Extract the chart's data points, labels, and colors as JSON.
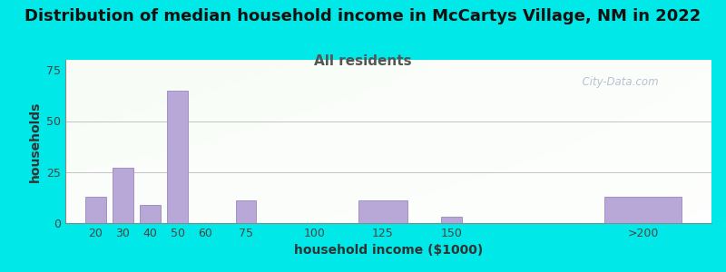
{
  "title": "Distribution of median household income in McCartys Village, NM in 2022",
  "subtitle": "All residents",
  "xlabel": "household income ($1000)",
  "ylabel": "households",
  "bar_labels": [
    "20",
    "30",
    "40",
    "50",
    "60",
    "75",
    "100",
    "125",
    "150",
    ">200"
  ],
  "bar_values": [
    13,
    27,
    9,
    65,
    0,
    11,
    0,
    11,
    3,
    13
  ],
  "bar_color": "#b8a8d8",
  "bar_edge_color": "#9a88c0",
  "ylim": [
    0,
    80
  ],
  "yticks": [
    0,
    25,
    50,
    75
  ],
  "bg_color": "#00e8e8",
  "title_fontsize": 13,
  "subtitle_fontsize": 11,
  "subtitle_color": "#555555",
  "axis_label_fontsize": 10,
  "tick_fontsize": 9,
  "watermark_text": "  City-Data.com",
  "watermark_color": "#aab8c8",
  "x_positions": [
    20,
    30,
    40,
    50,
    60,
    75,
    100,
    125,
    150,
    220
  ],
  "bar_widths": [
    7.5,
    7.5,
    7.5,
    7.5,
    7.5,
    7.5,
    7.5,
    18,
    7.5,
    28
  ],
  "xlim": [
    9,
    245
  ]
}
